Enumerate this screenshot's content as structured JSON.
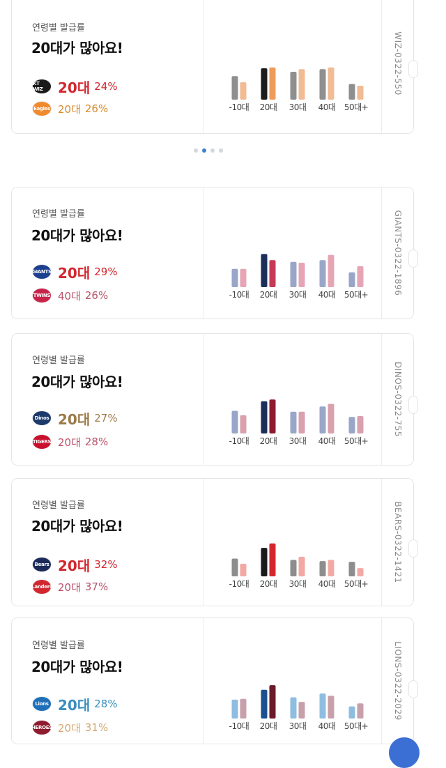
{
  "colors": {
    "red": "#d3272f",
    "brown": "#9c7a4a",
    "blue": "#3a8fc0",
    "muted": "#8d5a66"
  },
  "pager": {
    "count": 4,
    "active": 1
  },
  "cards": [
    {
      "subtitle": "연령별 발급률",
      "headline": "20대가 많아요!",
      "team1": {
        "logo": "KT WIZ",
        "logo_color": "#1a1a1a",
        "age": "20대",
        "pct": "24%",
        "age_color": "#d3272f"
      },
      "team2": {
        "logo": "Eagles",
        "logo_color": "#f08a2c",
        "age": "20대",
        "pct": "26%",
        "age_color": "#d98a30"
      },
      "stub": "WIZ-0322-550",
      "chart_data": {
        "type": "bar",
        "categories": [
          "-10대",
          "20대",
          "30대",
          "40대",
          "50대+"
        ],
        "series": [
          {
            "name": "home",
            "colors": [
              "#8f8f8f",
              "#1c1c1c",
              "#8f8f8f",
              "#8f8f8f",
              "#8f8f8f"
            ],
            "values": [
              27,
              36,
              32,
              35,
              18
            ]
          },
          {
            "name": "away",
            "colors": [
              "#f1bb94",
              "#ef9b5a",
              "#f1bb94",
              "#f1bb94",
              "#f1bb94"
            ],
            "values": [
              20,
              37,
              35,
              37,
              16
            ]
          }
        ],
        "ylim": [
          0,
          40
        ]
      }
    },
    {
      "subtitle": "연령별 발급률",
      "headline": "20대가 많아요!",
      "team1": {
        "logo": "GIANTS",
        "logo_color": "#1c3f8f",
        "age": "20대",
        "pct": "29%",
        "age_color": "#d3272f"
      },
      "team2": {
        "logo": "TWINS",
        "logo_color": "#c8244a",
        "age": "40대",
        "pct": "26%",
        "age_color": "#b8526a"
      },
      "stub": "GIANTS-0322-1896",
      "chart_data": {
        "type": "bar",
        "categories": [
          "-10대",
          "20대",
          "30대",
          "40대",
          "50대+"
        ],
        "series": [
          {
            "name": "home",
            "colors": [
              "#9aa6c8",
              "#1c2f5a",
              "#9aa6c8",
              "#9aa6c8",
              "#9aa6c8"
            ],
            "values": [
              21,
              38,
              29,
              31,
              17
            ]
          },
          {
            "name": "away",
            "colors": [
              "#e6a5b5",
              "#c63a55",
              "#e6a5b5",
              "#e6a5b5",
              "#e6a5b5"
            ],
            "values": [
              21,
              31,
              28,
              37,
              24
            ]
          }
        ],
        "ylim": [
          0,
          40
        ]
      }
    },
    {
      "subtitle": "연령별 발급률",
      "headline": "20대가 많아요!",
      "team1": {
        "logo": "Dinos",
        "logo_color": "#1c3a6b",
        "age": "20대",
        "pct": "27%",
        "age_color": "#9c7a4a"
      },
      "team2": {
        "logo": "TIGERS",
        "logo_color": "#c8102e",
        "age": "20대",
        "pct": "28%",
        "age_color": "#b8526a"
      },
      "stub": "DINOS-0322-755",
      "chart_data": {
        "type": "bar",
        "categories": [
          "-10대",
          "20대",
          "30대",
          "40대",
          "50대+"
        ],
        "series": [
          {
            "name": "home",
            "colors": [
              "#9aa6c8",
              "#1c2f5a",
              "#9aa6c8",
              "#9aa6c8",
              "#9aa6c8"
            ],
            "values": [
              26,
              37,
              25,
              31,
              19
            ]
          },
          {
            "name": "away",
            "colors": [
              "#d9a0ad",
              "#8e1b2e",
              "#d9a0ad",
              "#d9a0ad",
              "#d9a0ad"
            ],
            "values": [
              21,
              39,
              25,
              34,
              20
            ]
          }
        ],
        "ylim": [
          0,
          40
        ]
      }
    },
    {
      "subtitle": "연령별 발급률",
      "headline": "20대가 많아요!",
      "team1": {
        "logo": "Bears",
        "logo_color": "#1c2a5a",
        "age": "20대",
        "pct": "32%",
        "age_color": "#d3272f"
      },
      "team2": {
        "logo": "Landers",
        "logo_color": "#d3272f",
        "age": "20대",
        "pct": "37%",
        "age_color": "#b8526a"
      },
      "stub": "BEARS-0322-1421",
      "chart_data": {
        "type": "bar",
        "categories": [
          "-10대",
          "20대",
          "30대",
          "40대",
          "50대+"
        ],
        "series": [
          {
            "name": "home",
            "colors": [
              "#8d8d8d",
              "#1a1a1a",
              "#8d8d8d",
              "#8d8d8d",
              "#8d8d8d"
            ],
            "values": [
              28,
              45,
              26,
              24,
              23
            ]
          },
          {
            "name": "away",
            "colors": [
              "#f2a9a4",
              "#d3272f",
              "#f2a9a4",
              "#f2a9a4",
              "#f2a9a4"
            ],
            "values": [
              20,
              52,
              31,
              26,
              13
            ]
          }
        ],
        "ylim": [
          0,
          55
        ]
      }
    },
    {
      "subtitle": "연령별 발급률",
      "headline": "20대가 많아요!",
      "team1": {
        "logo": "Lions",
        "logo_color": "#1f6fb8",
        "age": "20대",
        "pct": "28%",
        "age_color": "#3a8fc0"
      },
      "team2": {
        "logo": "HEROES",
        "logo_color": "#8e1b2e",
        "age": "20대",
        "pct": "31%",
        "age_color": "#d2a870"
      },
      "stub": "LIONS-0322-2029",
      "chart_data": {
        "type": "bar",
        "categories": [
          "-10대",
          "20대",
          "30대",
          "40대",
          "50대+"
        ],
        "series": [
          {
            "name": "home",
            "colors": [
              "#8fbde0",
              "#1c4f8f",
              "#8fbde0",
              "#8fbde0",
              "#8fbde0"
            ],
            "values": [
              25,
              38,
              28,
              33,
              16
            ]
          },
          {
            "name": "away",
            "colors": [
              "#c7a0ab",
              "#6b1a2a",
              "#c7a0ab",
              "#c7a0ab",
              "#c7a0ab"
            ],
            "values": [
              26,
              44,
              22,
              30,
              20
            ]
          }
        ],
        "ylim": [
          0,
          46
        ]
      }
    }
  ]
}
